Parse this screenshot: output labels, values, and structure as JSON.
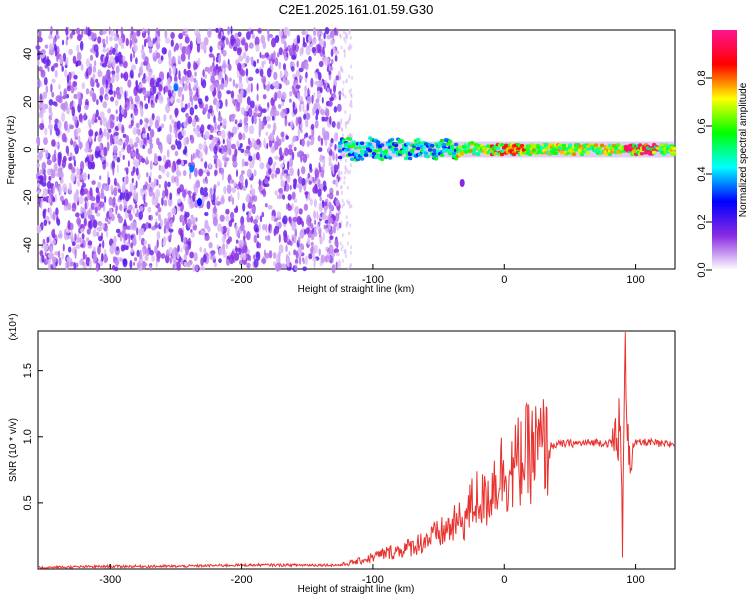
{
  "title": "C2E1.2025.161.01.59.G30",
  "chart_data": [
    {
      "type": "heatmap",
      "xlabel": "Height of straight line (km)",
      "ylabel": "Frequency (Hz)",
      "xlim": [
        -355,
        130
      ],
      "ylim": [
        -50,
        50
      ],
      "xticks": [
        -300,
        -200,
        -100,
        0,
        100
      ],
      "yticks": [
        -40,
        -20,
        0,
        20,
        40
      ],
      "colorbar": {
        "label": "Normalized spectral amplitude",
        "range": [
          0,
          1
        ],
        "ticks": [
          "0.0",
          "0.2",
          "0.4",
          "0.6",
          "0.8"
        ],
        "colors": [
          "#ffffff",
          "#8a2be2",
          "#0000ff",
          "#00ffff",
          "#00ff00",
          "#ffff00",
          "#ff0000",
          "#ff1493"
        ]
      },
      "noise_region_x": [
        -355,
        -125
      ],
      "signal_band_x": [
        -125,
        130
      ],
      "signal_center_frequency": 0,
      "features": [
        {
          "x": -250,
          "y": 26,
          "amplitude": 0.35
        },
        {
          "x": -238,
          "y": -8,
          "amplitude": 0.35
        },
        {
          "x": -232,
          "y": -22,
          "amplitude": 0.3
        },
        {
          "x": -32,
          "y": -14,
          "amplitude": 0.15
        }
      ]
    },
    {
      "type": "line",
      "xlabel": "Height of straight line (km)",
      "ylabel": "SNR (10 * v/v)",
      "y_multiplier": "(x10⁴)",
      "xlim": [
        -355,
        130
      ],
      "ylim": [
        0,
        1.8
      ],
      "xticks": [
        -300,
        -200,
        -100,
        0,
        100
      ],
      "yticks": [
        "0.5",
        "1.0",
        "1.5"
      ],
      "color": "#e8322e",
      "series": [
        {
          "x": [
            -355,
            -300,
            -250,
            -200,
            -150,
            -125,
            -110,
            -100,
            -90,
            -80,
            -70,
            -60,
            -50,
            -40,
            -30,
            -25,
            -20,
            -15,
            -10,
            -5,
            0,
            5,
            10,
            15,
            20,
            25,
            30,
            35,
            40,
            50,
            60,
            70,
            80,
            85,
            88,
            90,
            92,
            95,
            100,
            110,
            120,
            130
          ],
          "y": [
            0.01,
            0.02,
            0.02,
            0.03,
            0.03,
            0.03,
            0.06,
            0.09,
            0.12,
            0.14,
            0.17,
            0.22,
            0.26,
            0.32,
            0.38,
            0.48,
            0.55,
            0.5,
            0.62,
            0.7,
            0.76,
            0.72,
            0.8,
            0.85,
            0.88,
            0.9,
            0.92,
            0.93,
            0.94,
            0.95,
            0.95,
            0.96,
            0.95,
            0.98,
            1.1,
            0.25,
            1.6,
            0.9,
            0.95,
            0.96,
            0.94,
            0.95
          ]
        }
      ]
    }
  ]
}
